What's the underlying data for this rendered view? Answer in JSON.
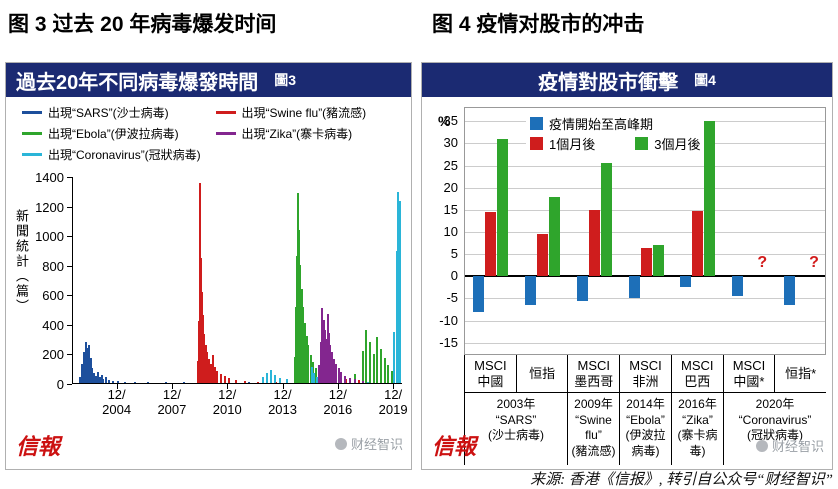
{
  "headings": {
    "fig3": "图 3 过去 20 年病毒爆发时间",
    "fig4": "图 4 疫情对股市的冲击"
  },
  "caption": "来源: 香港《信报》, 转引自公众号“财经智识”",
  "logo": "信報",
  "watermark": "财经智识",
  "chart_data": [
    {
      "type": "line",
      "title": "過去20年不同病毒爆發時間",
      "tag": "圖3",
      "ylabel": "新聞統計（篇）",
      "ylim": [
        0,
        1400
      ],
      "yticks": [
        0,
        200,
        400,
        600,
        800,
        1000,
        1200,
        1400
      ],
      "xlim": [
        2002.5,
        2020.4
      ],
      "xticks": [
        {
          "x": 2004.92,
          "top": "12/",
          "bottom": "2004"
        },
        {
          "x": 2007.92,
          "top": "12/",
          "bottom": "2007"
        },
        {
          "x": 2010.92,
          "top": "12/",
          "bottom": "2010"
        },
        {
          "x": 2013.92,
          "top": "12/",
          "bottom": "2013"
        },
        {
          "x": 2016.92,
          "top": "12/",
          "bottom": "2016"
        },
        {
          "x": 2019.92,
          "top": "12/",
          "bottom": "2019"
        }
      ],
      "series": [
        {
          "id": "sars",
          "name": "出現“SARS”(沙士病毒)",
          "color": "#1d4f9c",
          "points": [
            [
              2002.85,
              40
            ],
            [
              2002.95,
              130
            ],
            [
              2003.05,
              210
            ],
            [
              2003.15,
              280
            ],
            [
              2003.2,
              240
            ],
            [
              2003.3,
              260
            ],
            [
              2003.4,
              170
            ],
            [
              2003.5,
              100
            ],
            [
              2003.6,
              65
            ],
            [
              2003.7,
              45
            ],
            [
              2003.8,
              75
            ],
            [
              2003.9,
              40
            ],
            [
              2004.0,
              55
            ],
            [
              2004.1,
              30
            ],
            [
              2004.25,
              40
            ],
            [
              2004.4,
              22
            ],
            [
              2004.6,
              15
            ],
            [
              2004.9,
              12
            ],
            [
              2005.3,
              10
            ],
            [
              2005.8,
              8
            ],
            [
              2006.5,
              6
            ],
            [
              2007.5,
              5
            ],
            [
              2008.5,
              5
            ],
            [
              2009.5,
              8
            ],
            [
              2010.5,
              5
            ],
            [
              2012.0,
              4
            ],
            [
              2013.5,
              4
            ],
            [
              2015.0,
              5
            ],
            [
              2017.0,
              4
            ],
            [
              2019.0,
              4
            ]
          ]
        },
        {
          "id": "swine-flu",
          "name": "出現“Swine flu”(豬流感)",
          "color": "#cf1d1d",
          "points": [
            [
              2009.25,
              150
            ],
            [
              2009.32,
              420
            ],
            [
              2009.36,
              1360
            ],
            [
              2009.42,
              850
            ],
            [
              2009.48,
              620
            ],
            [
              2009.54,
              460
            ],
            [
              2009.6,
              330
            ],
            [
              2009.68,
              260
            ],
            [
              2009.76,
              210
            ],
            [
              2009.85,
              160
            ],
            [
              2009.95,
              130
            ],
            [
              2010.05,
              190
            ],
            [
              2010.15,
              110
            ],
            [
              2010.3,
              85
            ],
            [
              2010.5,
              60
            ],
            [
              2010.7,
              45
            ],
            [
              2010.95,
              35
            ],
            [
              2011.3,
              22
            ],
            [
              2011.8,
              15
            ],
            [
              2012.5,
              10
            ],
            [
              2013.5,
              8
            ],
            [
              2014.5,
              7
            ],
            [
              2015.5,
              8
            ],
            [
              2016.5,
              10
            ],
            [
              2017.3,
              25
            ],
            [
              2018.0,
              18
            ],
            [
              2019.0,
              12
            ]
          ]
        },
        {
          "id": "ebola",
          "name": "出現“Ebola”(伊波拉病毒)",
          "color": "#2fa52c",
          "points": [
            [
              2014.5,
              180
            ],
            [
              2014.58,
              520
            ],
            [
              2014.64,
              860
            ],
            [
              2014.7,
              1290
            ],
            [
              2014.76,
              1040
            ],
            [
              2014.82,
              800
            ],
            [
              2014.88,
              640
            ],
            [
              2014.95,
              520
            ],
            [
              2015.05,
              410
            ],
            [
              2015.15,
              320
            ],
            [
              2015.25,
              260
            ],
            [
              2015.38,
              190
            ],
            [
              2015.5,
              140
            ],
            [
              2015.65,
              100
            ],
            [
              2015.85,
              70
            ],
            [
              2016.1,
              45
            ],
            [
              2016.5,
              30
            ],
            [
              2017.0,
              20
            ],
            [
              2017.8,
              60
            ],
            [
              2018.2,
              220
            ],
            [
              2018.4,
              360
            ],
            [
              2018.6,
              280
            ],
            [
              2018.8,
              200
            ],
            [
              2019.0,
              310
            ],
            [
              2019.2,
              230
            ],
            [
              2019.4,
              170
            ],
            [
              2019.6,
              120
            ],
            [
              2019.8,
              80
            ]
          ]
        },
        {
          "id": "zika",
          "name": "出現“Zika”(寨卡病毒)",
          "color": "#83268f",
          "points": [
            [
              2015.85,
              120
            ],
            [
              2015.95,
              280
            ],
            [
              2016.02,
              510
            ],
            [
              2016.08,
              430
            ],
            [
              2016.15,
              360
            ],
            [
              2016.22,
              300
            ],
            [
              2016.3,
              470
            ],
            [
              2016.38,
              340
            ],
            [
              2016.45,
              260
            ],
            [
              2016.55,
              210
            ],
            [
              2016.65,
              160
            ],
            [
              2016.78,
              130
            ],
            [
              2016.9,
              100
            ],
            [
              2017.05,
              75
            ],
            [
              2017.25,
              50
            ],
            [
              2017.5,
              35
            ],
            [
              2017.8,
              25
            ],
            [
              2018.2,
              15
            ]
          ]
        },
        {
          "id": "coronavirus",
          "name": "出現“Coronavirus”(冠狀病毒)",
          "color": "#2ab5d8",
          "points": [
            [
              2012.8,
              40
            ],
            [
              2013.0,
              70
            ],
            [
              2013.2,
              90
            ],
            [
              2013.45,
              55
            ],
            [
              2013.7,
              35
            ],
            [
              2014.1,
              25
            ],
            [
              2015.45,
              110
            ],
            [
              2015.55,
              65
            ],
            [
              2015.7,
              40
            ],
            [
              2018.5,
              10
            ],
            [
              2019.9,
              350
            ],
            [
              2020.05,
              900
            ],
            [
              2020.15,
              1300
            ],
            [
              2020.25,
              1240
            ]
          ]
        }
      ]
    },
    {
      "type": "bar",
      "title": "疫情對股市衝擊",
      "tag": "圖4",
      "ylabel": "%",
      "ylim": [
        -15,
        35
      ],
      "yticks": [
        -15,
        -10,
        -5,
        0,
        5,
        10,
        15,
        20,
        25,
        30,
        35
      ],
      "categories": [
        "MSCI中國",
        "恒指",
        "MSCI墨西哥",
        "MSCI非洲",
        "MSCI巴西",
        "MSCI中國*",
        "恒指*"
      ],
      "group_labels": [
        [
          "MSCI",
          "中國"
        ],
        [
          "恒指"
        ],
        [
          "MSCI",
          "墨西哥"
        ],
        [
          "MSCI",
          "非洲"
        ],
        [
          "MSCI",
          "巴西"
        ],
        [
          "MSCI",
          "中國*"
        ],
        [
          "恒指*"
        ]
      ],
      "legend": [
        {
          "id": "peak-period",
          "name": "疫情開始至高峰期",
          "color": "#1d6fb8"
        },
        {
          "id": "one-month-later",
          "name": "1個月後",
          "color": "#cf1d1d"
        },
        {
          "id": "three-months-later",
          "name": "3個月後",
          "color": "#2fa52c"
        }
      ],
      "series": [
        {
          "id": "peak-period",
          "name": "疫情開始至高峰期",
          "color": "#1d6fb8",
          "values": [
            -8,
            -6.5,
            -5.5,
            -5,
            -2.5,
            -4.5,
            -6.5
          ]
        },
        {
          "id": "one-month-later",
          "name": "1個月後",
          "color": "#cf1d1d",
          "values": [
            14.5,
            9.5,
            15,
            6.5,
            14.8,
            null,
            null
          ]
        },
        {
          "id": "three-months-later",
          "name": "3個月後",
          "color": "#2fa52c",
          "values": [
            31,
            18,
            25.5,
            7,
            35,
            null,
            null
          ]
        }
      ],
      "unknown_marker": "?",
      "unknown_groups": [
        5,
        6
      ],
      "events": [
        {
          "span": 2,
          "lines": [
            "2003年",
            "“SARS”",
            "(沙士病毒)"
          ]
        },
        {
          "span": 1,
          "lines": [
            "2009年",
            "“Swine flu”",
            "(豬流感)"
          ]
        },
        {
          "span": 1,
          "lines": [
            "2014年",
            "“Ebola”",
            "(伊波拉病毒)"
          ]
        },
        {
          "span": 1,
          "lines": [
            "2016年",
            "“Zika”",
            "(寨卡病毒)"
          ]
        },
        {
          "span": 2,
          "lines": [
            "2020年",
            "“Coronavirus”",
            "(冠狀病毒)"
          ]
        }
      ]
    }
  ]
}
